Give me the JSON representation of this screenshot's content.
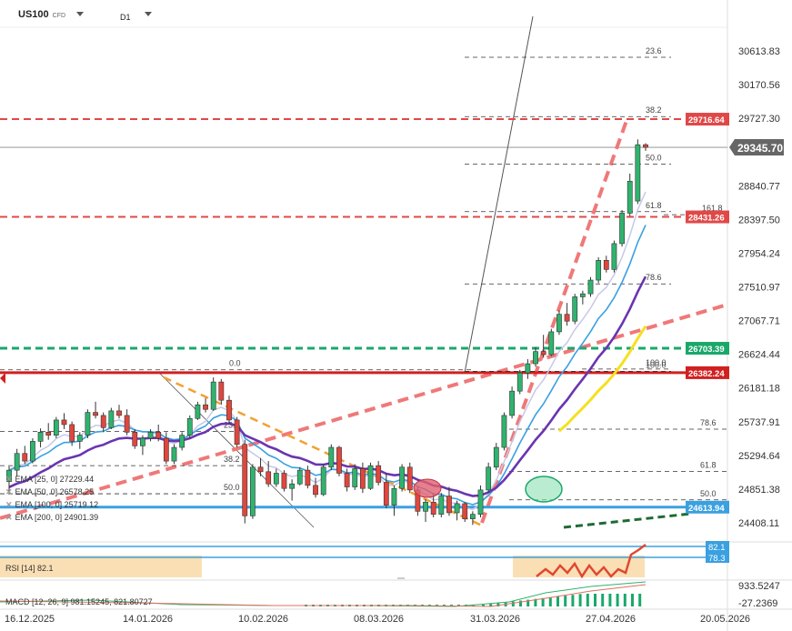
{
  "header": {
    "symbol": "US100",
    "instrument_type": "CFD",
    "timeframe": "D1"
  },
  "chart_data": {
    "type": "candlestick",
    "price_axis_ticks": [
      "30613.83",
      "30170.56",
      "29727.30",
      "28840.77",
      "28397.50",
      "27954.24",
      "27510.97",
      "27067.71",
      "26624.44",
      "26181.18",
      "25737.91",
      "25294.64",
      "24851.38",
      "24408.11"
    ],
    "price_range": [
      24300,
      30900
    ],
    "date_axis_ticks": [
      "16.12.2025",
      "14.01.2026",
      "10.02.2026",
      "08.03.2026",
      "31.03.2026",
      "27.04.2026",
      "20.05.2026"
    ],
    "current_price": "29345.70",
    "price_labels": [
      {
        "value": "29716.64",
        "color": "#e04848"
      },
      {
        "value": "28431.26",
        "color": "#e04848"
      },
      {
        "value": "26703.39",
        "color": "#1aa86a"
      },
      {
        "value": "26382.24",
        "color": "#d02020"
      },
      {
        "value": "24613.94",
        "color": "#3aa0e0"
      }
    ],
    "fib_upper": [
      {
        "label": "23.6",
        "price": 30530
      },
      {
        "label": "38.2",
        "price": 29750
      },
      {
        "label": "50.0",
        "price": 29125
      },
      {
        "label": "61.8",
        "price": 28500
      },
      {
        "label": "161.8",
        "price": 28460
      },
      {
        "label": "78.6",
        "price": 27550
      },
      {
        "label": "100.0",
        "price": 26400
      },
      {
        "label": "100.0",
        "price": 26430
      }
    ],
    "fib_lower": [
      {
        "label": "0.0",
        "price": 26420
      },
      {
        "label": "23.6",
        "price": 25610
      },
      {
        "label": "38.2",
        "price": 25160
      },
      {
        "label": "50.0",
        "price": 24790
      },
      {
        "label": "78.6",
        "price": 25640
      },
      {
        "label": "61.8",
        "price": 25085
      },
      {
        "label": "50.0",
        "price": 24710
      }
    ],
    "candles": [
      [
        24950,
        25150,
        24820,
        25100
      ],
      [
        25100,
        25380,
        25020,
        25320
      ],
      [
        25320,
        25420,
        25180,
        25220
      ],
      [
        25220,
        25520,
        25190,
        25480
      ],
      [
        25480,
        25650,
        25400,
        25600
      ],
      [
        25600,
        25720,
        25500,
        25560
      ],
      [
        25560,
        25800,
        25520,
        25760
      ],
      [
        25760,
        25850,
        25640,
        25700
      ],
      [
        25700,
        25740,
        25420,
        25480
      ],
      [
        25480,
        25600,
        25380,
        25560
      ],
      [
        25560,
        25900,
        25520,
        25860
      ],
      [
        25860,
        26000,
        25780,
        25820
      ],
      [
        25820,
        25860,
        25600,
        25660
      ],
      [
        25660,
        25920,
        25640,
        25880
      ],
      [
        25880,
        25960,
        25780,
        25820
      ],
      [
        25820,
        25900,
        25560,
        25600
      ],
      [
        25600,
        25640,
        25380,
        25420
      ],
      [
        25420,
        25560,
        25300,
        25520
      ],
      [
        25520,
        25640,
        25480,
        25600
      ],
      [
        25600,
        25700,
        25480,
        25520
      ],
      [
        25520,
        25600,
        25180,
        25220
      ],
      [
        25220,
        25440,
        25180,
        25400
      ],
      [
        25400,
        25600,
        25360,
        25560
      ],
      [
        25560,
        25820,
        25520,
        25780
      ],
      [
        25780,
        26000,
        25760,
        25960
      ],
      [
        25960,
        26050,
        25860,
        25900
      ],
      [
        25900,
        26320,
        25880,
        26260
      ],
      [
        26260,
        26300,
        25960,
        26020
      ],
      [
        26020,
        26080,
        25700,
        25760
      ],
      [
        25760,
        25800,
        25400,
        25440
      ],
      [
        25440,
        25500,
        24400,
        24500
      ],
      [
        24500,
        25180,
        24460,
        25140
      ],
      [
        25140,
        25260,
        25020,
        25080
      ],
      [
        25080,
        25220,
        24880,
        24920
      ],
      [
        24920,
        25120,
        24880,
        25060
      ],
      [
        25060,
        25100,
        24820,
        24860
      ],
      [
        24860,
        24980,
        24700,
        24920
      ],
      [
        24920,
        25140,
        24900,
        25100
      ],
      [
        25100,
        25160,
        24860,
        24900
      ],
      [
        24900,
        25000,
        24740,
        24780
      ],
      [
        24780,
        25180,
        24760,
        25140
      ],
      [
        25140,
        25440,
        25100,
        25400
      ],
      [
        25400,
        25420,
        25020,
        25060
      ],
      [
        25060,
        25120,
        24820,
        24880
      ],
      [
        24880,
        25180,
        24840,
        25120
      ],
      [
        25120,
        25200,
        24800,
        24860
      ],
      [
        24860,
        25200,
        24840,
        25160
      ],
      [
        25160,
        25220,
        24900,
        24940
      ],
      [
        24940,
        25060,
        24600,
        24640
      ],
      [
        24640,
        24900,
        24500,
        24860
      ],
      [
        24860,
        25180,
        24820,
        25140
      ],
      [
        25140,
        25200,
        24800,
        24840
      ],
      [
        24840,
        24880,
        24500,
        24560
      ],
      [
        24560,
        24720,
        24420,
        24680
      ],
      [
        24680,
        24800,
        24480,
        24520
      ],
      [
        24520,
        24800,
        24480,
        24760
      ],
      [
        24760,
        24880,
        24500,
        24540
      ],
      [
        24540,
        24700,
        24440,
        24660
      ],
      [
        24660,
        24680,
        24420,
        24460
      ],
      [
        24460,
        24560,
        24380,
        24520
      ],
      [
        24520,
        24900,
        24480,
        24840
      ],
      [
        24840,
        25200,
        24800,
        25140
      ],
      [
        25140,
        25460,
        25100,
        25400
      ],
      [
        25400,
        25860,
        25360,
        25820
      ],
      [
        25820,
        26200,
        25780,
        26140
      ],
      [
        26140,
        26420,
        26100,
        26380
      ],
      [
        26380,
        26560,
        26300,
        26500
      ],
      [
        26500,
        26720,
        26460,
        26660
      ],
      [
        26660,
        26880,
        26580,
        26620
      ],
      [
        26620,
        26960,
        26600,
        26920
      ],
      [
        26920,
        27200,
        26880,
        27150
      ],
      [
        27150,
        27300,
        27000,
        27060
      ],
      [
        27060,
        27420,
        27020,
        27380
      ],
      [
        27380,
        27460,
        27280,
        27420
      ],
      [
        27420,
        27640,
        27380,
        27600
      ],
      [
        27600,
        27900,
        27560,
        27860
      ],
      [
        27860,
        27920,
        27700,
        27740
      ],
      [
        27740,
        28120,
        27700,
        28080
      ],
      [
        28080,
        28520,
        28040,
        28480
      ],
      [
        28480,
        29000,
        28440,
        28900
      ],
      [
        28640,
        29450,
        28600,
        29380
      ],
      [
        29380,
        29400,
        29300,
        29345.7
      ]
    ],
    "indicators": {
      "ema25": "EMA [25, 0] 27229.44",
      "ema50": "EMA [50, 0] 26578.25",
      "ema100": "EMA [100, 0] 25719.12",
      "ema200": "EMA [200, 0] 24901.39"
    },
    "rsi": {
      "legend": "RSI [14] 82.1",
      "levels": [
        "82.1",
        "78.3"
      ]
    },
    "macd": {
      "legend": "MACD [12, 26, 9] 981.15245, 821.80727",
      "ticks": [
        "933.5247",
        "-27.2369"
      ]
    }
  }
}
